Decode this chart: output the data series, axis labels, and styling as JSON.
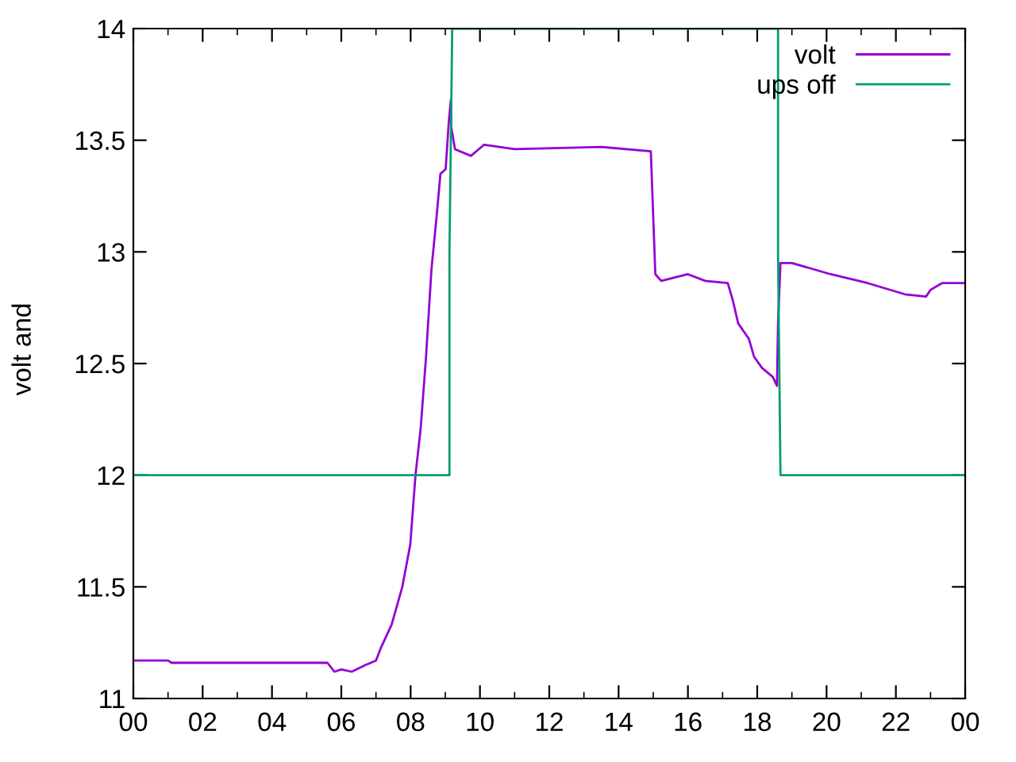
{
  "chart_data": {
    "type": "line",
    "ylabel": "volt and",
    "xlim": [
      0,
      24
    ],
    "ylim": [
      11,
      14
    ],
    "xticks": [
      {
        "value": 0,
        "label": "00"
      },
      {
        "value": 1,
        "label": null
      },
      {
        "value": 2,
        "label": "02"
      },
      {
        "value": 3,
        "label": null
      },
      {
        "value": 4,
        "label": "04"
      },
      {
        "value": 5,
        "label": null
      },
      {
        "value": 6,
        "label": "06"
      },
      {
        "value": 7,
        "label": null
      },
      {
        "value": 8,
        "label": "08"
      },
      {
        "value": 9,
        "label": null
      },
      {
        "value": 10,
        "label": "10"
      },
      {
        "value": 11,
        "label": null
      },
      {
        "value": 12,
        "label": "12"
      },
      {
        "value": 13,
        "label": null
      },
      {
        "value": 14,
        "label": "14"
      },
      {
        "value": 15,
        "label": null
      },
      {
        "value": 16,
        "label": "16"
      },
      {
        "value": 17,
        "label": null
      },
      {
        "value": 18,
        "label": "18"
      },
      {
        "value": 19,
        "label": null
      },
      {
        "value": 20,
        "label": "20"
      },
      {
        "value": 21,
        "label": null
      },
      {
        "value": 22,
        "label": "22"
      },
      {
        "value": 23,
        "label": null
      },
      {
        "value": 24,
        "label": "00"
      }
    ],
    "yticks": [
      11,
      11.5,
      12,
      12.5,
      13,
      13.5,
      14
    ],
    "grid": false,
    "legend": "top right",
    "marker": "none",
    "line_style": "solid",
    "series": [
      {
        "name": "volt",
        "color": "#9400d3",
        "x": [
          0,
          1.0,
          1.1,
          5.6,
          5.8,
          6.0,
          6.3,
          6.7,
          7.0,
          7.15,
          7.45,
          7.76,
          7.99,
          8.14,
          8.29,
          8.44,
          8.6,
          8.75,
          8.86,
          9.01,
          9.1,
          9.16,
          9.17,
          9.28,
          9.74,
          10.12,
          11.0,
          13.5,
          14.93,
          15.06,
          15.23,
          16.0,
          16.5,
          17.15,
          17.3,
          17.45,
          17.76,
          17.91,
          18.14,
          18.45,
          18.57,
          18.6,
          18.67,
          19.0,
          20.12,
          21.19,
          22.26,
          22.87,
          23.0,
          23.33,
          24
        ],
        "values": [
          11.17,
          11.17,
          11.16,
          11.16,
          11.12,
          11.13,
          11.12,
          11.15,
          11.17,
          11.23,
          11.33,
          11.5,
          11.69,
          12.0,
          12.21,
          12.52,
          12.92,
          13.16,
          13.35,
          13.37,
          13.58,
          13.68,
          13.56,
          13.46,
          13.43,
          13.48,
          13.46,
          13.47,
          13.45,
          12.9,
          12.87,
          12.9,
          12.87,
          12.86,
          12.78,
          12.68,
          12.61,
          12.53,
          12.48,
          12.44,
          12.4,
          12.68,
          12.95,
          12.95,
          12.9,
          12.86,
          12.81,
          12.8,
          12.83,
          12.86,
          12.86
        ]
      },
      {
        "name": "ups off",
        "color": "#009e73",
        "x": [
          0,
          9.12,
          9.12,
          9.2,
          18.6,
          18.6,
          18.67,
          24
        ],
        "values": [
          12,
          12,
          13,
          14,
          14,
          13,
          12,
          12
        ]
      }
    ]
  }
}
